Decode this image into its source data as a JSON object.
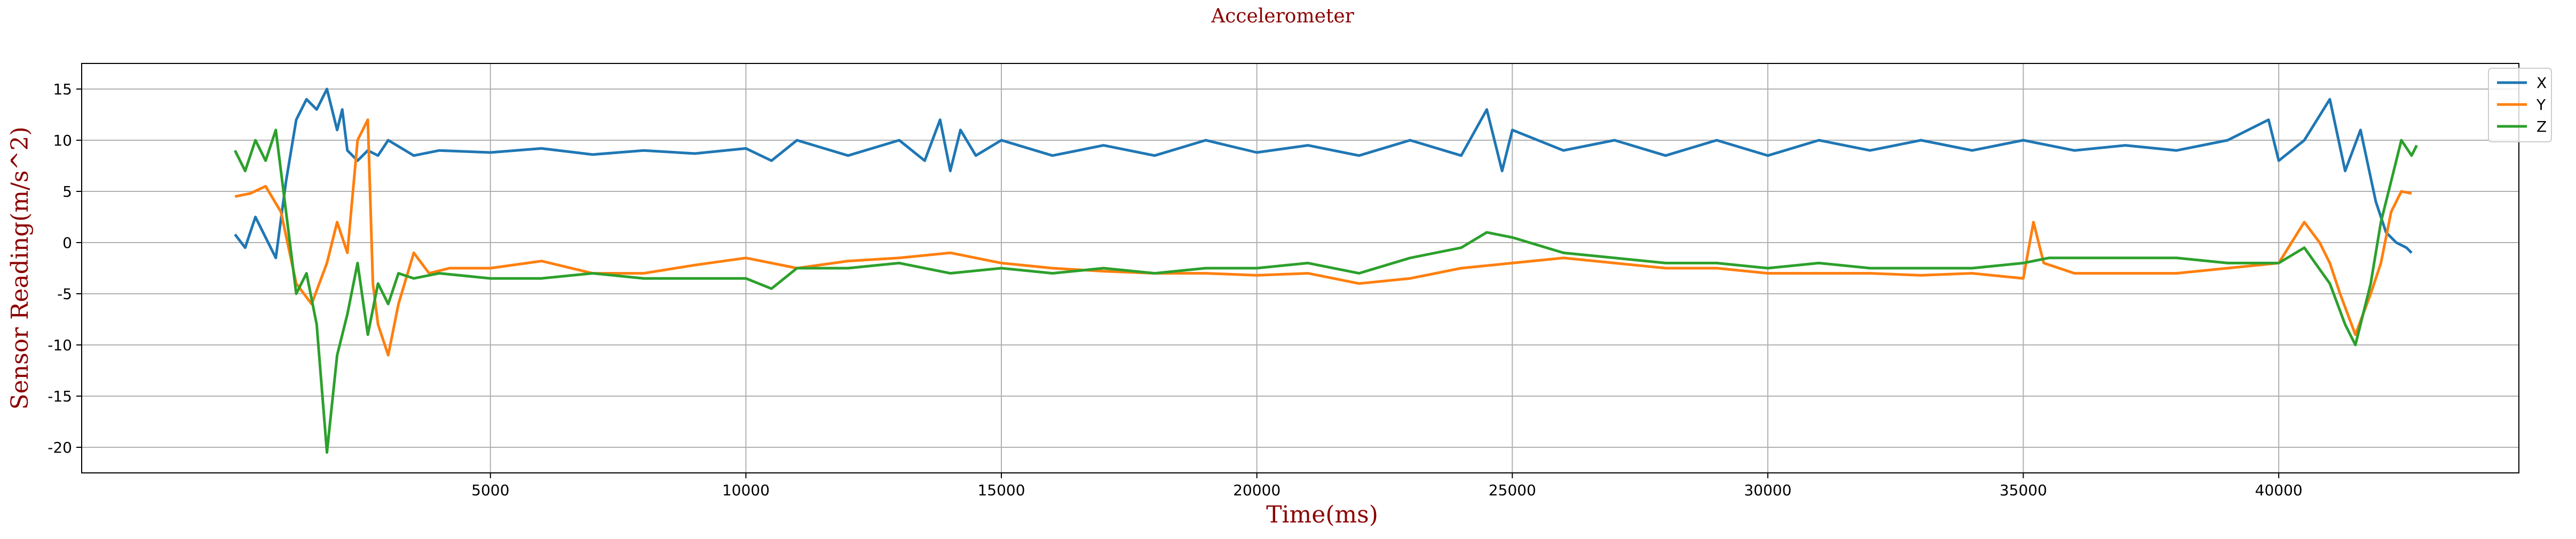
{
  "chart_data": {
    "type": "line",
    "title": "Accelerometer",
    "xlabel": "Time(ms)",
    "ylabel": "Sensor Reading(m/s^2)",
    "xlim": [
      -3000,
      44700
    ],
    "ylim": [
      -22.5,
      17.5
    ],
    "xticks": [
      5000,
      10000,
      15000,
      20000,
      25000,
      30000,
      35000,
      40000
    ],
    "yticks": [
      15,
      10,
      5,
      0,
      -5,
      -10,
      -15,
      -20
    ],
    "grid": true,
    "legend_position": "top-right",
    "series": [
      {
        "name": "X",
        "color": "#1f77b4",
        "points": [
          [
            0,
            0.8
          ],
          [
            200,
            -0.5
          ],
          [
            400,
            2.5
          ],
          [
            600,
            0.5
          ],
          [
            800,
            -1.5
          ],
          [
            1000,
            6
          ],
          [
            1200,
            12
          ],
          [
            1400,
            14
          ],
          [
            1600,
            13
          ],
          [
            1800,
            15
          ],
          [
            2000,
            11
          ],
          [
            2100,
            13
          ],
          [
            2200,
            9
          ],
          [
            2400,
            8
          ],
          [
            2600,
            9
          ],
          [
            2800,
            8.5
          ],
          [
            3000,
            10
          ],
          [
            3500,
            8.5
          ],
          [
            4000,
            9
          ],
          [
            5000,
            8.8
          ],
          [
            6000,
            9.2
          ],
          [
            7000,
            8.6
          ],
          [
            8000,
            9
          ],
          [
            9000,
            8.7
          ],
          [
            10000,
            9.2
          ],
          [
            10500,
            8
          ],
          [
            11000,
            10
          ],
          [
            12000,
            8.5
          ],
          [
            13000,
            10
          ],
          [
            13500,
            8
          ],
          [
            13800,
            12
          ],
          [
            14000,
            7
          ],
          [
            14200,
            11
          ],
          [
            14500,
            8.5
          ],
          [
            15000,
            10
          ],
          [
            16000,
            8.5
          ],
          [
            17000,
            9.5
          ],
          [
            18000,
            8.5
          ],
          [
            19000,
            10
          ],
          [
            20000,
            8.8
          ],
          [
            21000,
            9.5
          ],
          [
            22000,
            8.5
          ],
          [
            23000,
            10
          ],
          [
            24000,
            8.5
          ],
          [
            24500,
            13
          ],
          [
            24800,
            7
          ],
          [
            25000,
            11
          ],
          [
            26000,
            9
          ],
          [
            27000,
            10
          ],
          [
            28000,
            8.5
          ],
          [
            29000,
            10
          ],
          [
            30000,
            8.5
          ],
          [
            31000,
            10
          ],
          [
            32000,
            9
          ],
          [
            33000,
            10
          ],
          [
            34000,
            9
          ],
          [
            35000,
            10
          ],
          [
            36000,
            9
          ],
          [
            37000,
            9.5
          ],
          [
            38000,
            9
          ],
          [
            39000,
            10
          ],
          [
            39800,
            12
          ],
          [
            40000,
            8
          ],
          [
            40500,
            10
          ],
          [
            41000,
            14
          ],
          [
            41300,
            7
          ],
          [
            41600,
            11
          ],
          [
            41900,
            4
          ],
          [
            42100,
            1
          ],
          [
            42300,
            0
          ],
          [
            42500,
            -0.5
          ],
          [
            42600,
            -1
          ]
        ]
      },
      {
        "name": "Y",
        "color": "#ff7f0e",
        "points": [
          [
            0,
            4.5
          ],
          [
            300,
            4.8
          ],
          [
            600,
            5.5
          ],
          [
            900,
            3
          ],
          [
            1200,
            -4
          ],
          [
            1500,
            -6
          ],
          [
            1800,
            -2
          ],
          [
            2000,
            2
          ],
          [
            2200,
            -1
          ],
          [
            2400,
            10
          ],
          [
            2600,
            12
          ],
          [
            2700,
            -4
          ],
          [
            2800,
            -8
          ],
          [
            3000,
            -11
          ],
          [
            3200,
            -6
          ],
          [
            3500,
            -1
          ],
          [
            3800,
            -3
          ],
          [
            4200,
            -2.5
          ],
          [
            5000,
            -2.5
          ],
          [
            6000,
            -1.8
          ],
          [
            7000,
            -3
          ],
          [
            8000,
            -3
          ],
          [
            9000,
            -2.2
          ],
          [
            10000,
            -1.5
          ],
          [
            11000,
            -2.5
          ],
          [
            12000,
            -1.8
          ],
          [
            13000,
            -1.5
          ],
          [
            14000,
            -1
          ],
          [
            15000,
            -2
          ],
          [
            16000,
            -2.5
          ],
          [
            17000,
            -2.8
          ],
          [
            18000,
            -3
          ],
          [
            19000,
            -3
          ],
          [
            20000,
            -3.2
          ],
          [
            21000,
            -3
          ],
          [
            22000,
            -4
          ],
          [
            23000,
            -3.5
          ],
          [
            24000,
            -2.5
          ],
          [
            25000,
            -2
          ],
          [
            26000,
            -1.5
          ],
          [
            27000,
            -2
          ],
          [
            28000,
            -2.5
          ],
          [
            29000,
            -2.5
          ],
          [
            30000,
            -3
          ],
          [
            31000,
            -3
          ],
          [
            32000,
            -3
          ],
          [
            33000,
            -3.2
          ],
          [
            34000,
            -3
          ],
          [
            35000,
            -3.5
          ],
          [
            35200,
            2
          ],
          [
            35400,
            -2
          ],
          [
            36000,
            -3
          ],
          [
            37000,
            -3
          ],
          [
            38000,
            -3
          ],
          [
            39000,
            -2.5
          ],
          [
            40000,
            -2
          ],
          [
            40500,
            2
          ],
          [
            40800,
            0
          ],
          [
            41000,
            -2
          ],
          [
            41200,
            -5
          ],
          [
            41500,
            -9
          ],
          [
            41800,
            -5
          ],
          [
            42000,
            -2
          ],
          [
            42200,
            3
          ],
          [
            42400,
            5
          ],
          [
            42600,
            4.8
          ]
        ]
      },
      {
        "name": "Z",
        "color": "#2ca02c",
        "points": [
          [
            0,
            9
          ],
          [
            200,
            7
          ],
          [
            400,
            10
          ],
          [
            600,
            8
          ],
          [
            800,
            11
          ],
          [
            1000,
            3
          ],
          [
            1200,
            -5
          ],
          [
            1400,
            -3
          ],
          [
            1600,
            -8
          ],
          [
            1800,
            -20.5
          ],
          [
            2000,
            -11
          ],
          [
            2200,
            -7
          ],
          [
            2400,
            -2
          ],
          [
            2600,
            -9
          ],
          [
            2800,
            -4
          ],
          [
            3000,
            -6
          ],
          [
            3200,
            -3
          ],
          [
            3500,
            -3.5
          ],
          [
            4000,
            -3
          ],
          [
            5000,
            -3.5
          ],
          [
            6000,
            -3.5
          ],
          [
            7000,
            -3
          ],
          [
            8000,
            -3.5
          ],
          [
            9000,
            -3.5
          ],
          [
            10000,
            -3.5
          ],
          [
            10500,
            -4.5
          ],
          [
            11000,
            -2.5
          ],
          [
            12000,
            -2.5
          ],
          [
            13000,
            -2
          ],
          [
            14000,
            -3
          ],
          [
            15000,
            -2.5
          ],
          [
            16000,
            -3
          ],
          [
            17000,
            -2.5
          ],
          [
            18000,
            -3
          ],
          [
            19000,
            -2.5
          ],
          [
            20000,
            -2.5
          ],
          [
            21000,
            -2
          ],
          [
            22000,
            -3
          ],
          [
            23000,
            -1.5
          ],
          [
            24000,
            -0.5
          ],
          [
            24500,
            1
          ],
          [
            25000,
            0.5
          ],
          [
            26000,
            -1
          ],
          [
            27000,
            -1.5
          ],
          [
            28000,
            -2
          ],
          [
            29000,
            -2
          ],
          [
            30000,
            -2.5
          ],
          [
            31000,
            -2
          ],
          [
            32000,
            -2.5
          ],
          [
            33000,
            -2.5
          ],
          [
            34000,
            -2.5
          ],
          [
            35000,
            -2
          ],
          [
            35500,
            -1.5
          ],
          [
            36000,
            -1.5
          ],
          [
            37000,
            -1.5
          ],
          [
            38000,
            -1.5
          ],
          [
            39000,
            -2
          ],
          [
            40000,
            -2
          ],
          [
            40500,
            -0.5
          ],
          [
            41000,
            -4
          ],
          [
            41300,
            -8
          ],
          [
            41500,
            -10
          ],
          [
            41800,
            -4
          ],
          [
            42000,
            2
          ],
          [
            42200,
            6
          ],
          [
            42400,
            10
          ],
          [
            42600,
            8.5
          ],
          [
            42700,
            9.5
          ]
        ]
      }
    ]
  }
}
